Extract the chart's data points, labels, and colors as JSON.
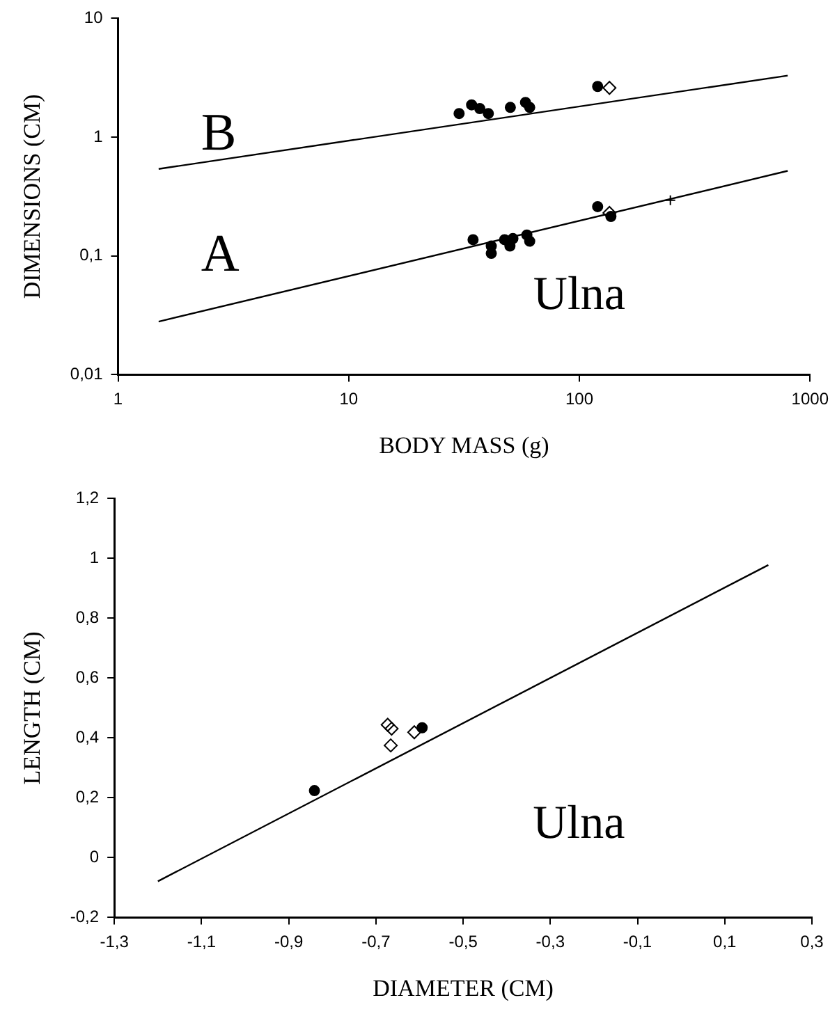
{
  "chart_data": [
    {
      "type": "scatter",
      "xlabel": "BODY MASS (g)",
      "ylabel": "DIMENSIONS (CM)",
      "log": "xy",
      "xlim": [
        1,
        1000
      ],
      "xticks": [
        1,
        10,
        100,
        1000
      ],
      "ylim": [
        0.01,
        10
      ],
      "yticks": [
        {
          "value": 0.01,
          "label": "0,01"
        },
        {
          "value": 0.1,
          "label": "0,1"
        },
        {
          "value": 1,
          "label": "1"
        },
        {
          "value": 10,
          "label": "10"
        }
      ],
      "series": [
        {
          "type": "line",
          "color": "#000000",
          "marker": "none",
          "x": [
            1.5,
            800
          ],
          "values": [
            0.54,
            3.3
          ]
        },
        {
          "type": "line",
          "color": "#000000",
          "marker": "none",
          "x": [
            1.5,
            800
          ],
          "values": [
            0.028,
            0.52
          ]
        },
        {
          "color": "#000000",
          "marker": "circle",
          "x": [
            30.1,
            34.1,
            37,
            40.3,
            50.2,
            58.4,
            60.9
          ],
          "values": [
            1.58,
            1.87,
            1.74,
            1.58,
            1.78,
            1.96,
            1.78
          ]
        },
        {
          "color": "#000000",
          "marker": "circle",
          "x": [
            34.6,
            41.5,
            41.5,
            47.4,
            51.5,
            50,
            59.2,
            60.9,
            137
          ],
          "values": [
            0.137,
            0.121,
            0.105,
            0.137,
            0.14,
            0.121,
            0.15,
            0.133,
            0.215
          ]
        },
        {
          "color": "#000000",
          "marker": "circle",
          "x": [
            120,
            120
          ],
          "values": [
            2.67,
            0.26
          ]
        },
        {
          "color": "#000000",
          "marker": "diamond",
          "x": [
            135,
            135
          ],
          "values": [
            2.6,
            0.23
          ]
        },
        {
          "color": "#000000",
          "marker": "cross",
          "x": [
            248
          ],
          "values": [
            0.294
          ]
        }
      ],
      "annotations": [
        "B",
        "A",
        "Ulna"
      ]
    },
    {
      "type": "scatter",
      "xlabel": "DIAMETER (CM)",
      "ylabel": "LENGTH (CM)",
      "xlim": [
        -1.3,
        0.3
      ],
      "xticks": [
        {
          "value": -1.3,
          "label": "-1,3"
        },
        {
          "value": -1.1,
          "label": "-1,1"
        },
        {
          "value": -0.9,
          "label": "-0,9"
        },
        {
          "value": -0.7,
          "label": "-0,7"
        },
        {
          "value": -0.5,
          "label": "-0,5"
        },
        {
          "value": -0.3,
          "label": "-0,3"
        },
        {
          "value": -0.1,
          "label": "-0,1"
        },
        {
          "value": 0.1,
          "label": "0,1"
        },
        {
          "value": 0.3,
          "label": "0,3"
        }
      ],
      "ylim": [
        -0.2,
        1.2
      ],
      "yticks": [
        {
          "value": -0.2,
          "label": "-0,2"
        },
        0,
        {
          "value": 0.2,
          "label": "0,2"
        },
        {
          "value": 0.4,
          "label": "0,4"
        },
        {
          "value": 0.6,
          "label": "0,6"
        },
        {
          "value": 0.8,
          "label": "0,8"
        },
        1,
        {
          "value": 1.2,
          "label": "1,2"
        }
      ],
      "series": [
        {
          "type": "line",
          "color": "#000000",
          "marker": "none",
          "x": [
            -1.2,
            0.2
          ],
          "values": [
            -0.079,
            0.978
          ]
        },
        {
          "color": "#000000",
          "marker": "circle",
          "x": [
            -0.841
          ],
          "values": [
            0.224
          ]
        },
        {
          "color": "#000000",
          "marker": "diamond",
          "x": [
            -0.673,
            -0.664,
            -0.666,
            -0.612
          ],
          "values": [
            0.444,
            0.431,
            0.375,
            0.419
          ]
        },
        {
          "color": "#000000",
          "marker": "circle",
          "x": [
            -0.594
          ],
          "values": [
            0.434
          ]
        }
      ],
      "annotations": [
        "Ulna"
      ]
    }
  ]
}
